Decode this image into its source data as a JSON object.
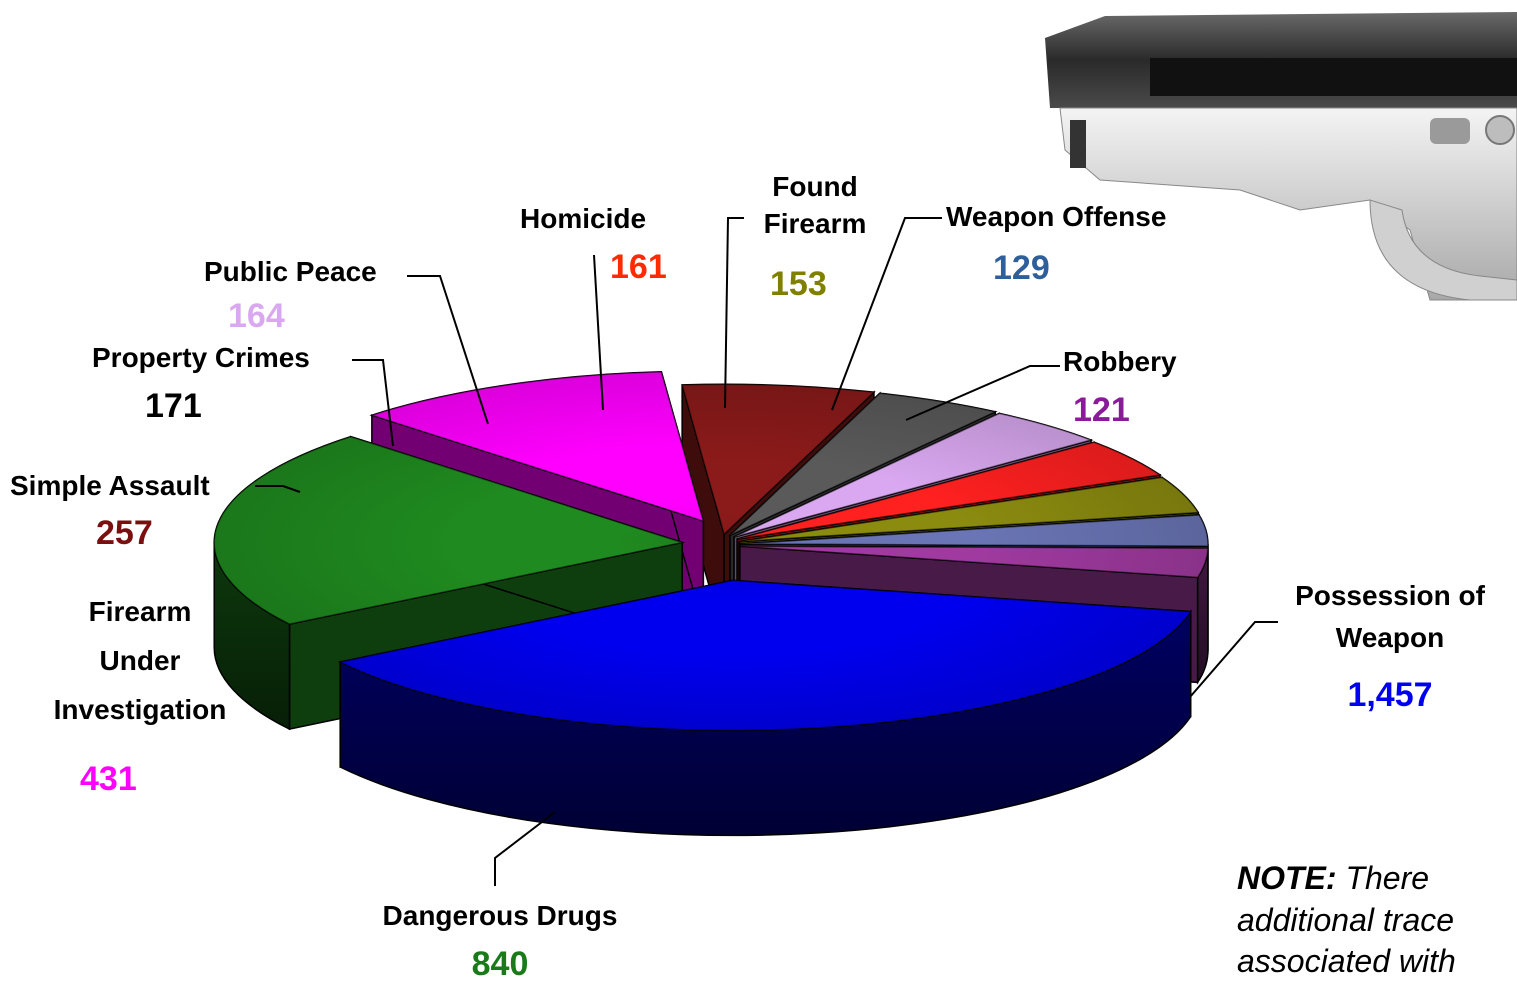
{
  "chart_data": {
    "type": "pie",
    "style": "3d-exploded",
    "slices": [
      {
        "label": "Possession of Weapon",
        "value": 1457,
        "display": "1,457",
        "color": "#0000ee"
      },
      {
        "label": "Dangerous Drugs",
        "value": 840,
        "display": "840",
        "color": "#1f8a1f"
      },
      {
        "label": "Firearm Under Investigation",
        "value": 431,
        "display": "431",
        "color": "#ff00ff"
      },
      {
        "label": "Simple Assault",
        "value": 257,
        "display": "257",
        "color": "#8b1a1a"
      },
      {
        "label": "Property Crimes",
        "value": 171,
        "display": "171",
        "color": "#5a5a5a"
      },
      {
        "label": "Public Peace",
        "value": 164,
        "display": "164",
        "color": "#d9a8f0"
      },
      {
        "label": "Homicide",
        "value": 161,
        "display": "161",
        "color": "#ff2020"
      },
      {
        "label": "Found Firearm",
        "value": 153,
        "display": "153",
        "color": "#8b8b10"
      },
      {
        "label": "Weapon Offense",
        "value": 129,
        "display": "129",
        "color": "#6a75b5"
      },
      {
        "label": "Robbery",
        "value": 121,
        "display": "121",
        "color": "#a03aa0"
      }
    ],
    "value_colors": {
      "Possession of Weapon": "#0000ee",
      "Dangerous Drugs": "#1a7a1a",
      "Firearm Under Investigation": "#ff00ff",
      "Simple Assault": "#7a0f0f",
      "Property Crimes": "#000000",
      "Public Peace": "#d9a8f0",
      "Homicide": "#ff2a00",
      "Found Firearm": "#808000",
      "Weapon Offense": "#2f5f9a",
      "Robbery": "#8a1a9a"
    }
  },
  "labels": {
    "possession_l1": "Possession of",
    "possession_l2": "Weapon",
    "dangerous": "Dangerous Drugs",
    "firearm_l1": "Firearm",
    "firearm_l2": "Under",
    "firearm_l3": "Investigation",
    "simple": "Simple Assault",
    "property": "Property Crimes",
    "public": "Public Peace",
    "homicide": "Homicide",
    "found_l1": "Found",
    "found_l2": "Firearm",
    "weapon": "Weapon Offense",
    "robbery": "Robbery"
  },
  "values": {
    "possession": "1,457",
    "dangerous": "840",
    "firearm": "431",
    "simple": "257",
    "property": "171",
    "public": "164",
    "homicide": "161",
    "found": "153",
    "weapon": "129",
    "robbery": "121"
  },
  "note": {
    "prefix": "NOTE:",
    "line1": " There",
    "line2": "additional trace",
    "line3": "associated with"
  },
  "image": {
    "icon": "pistol-icon"
  }
}
